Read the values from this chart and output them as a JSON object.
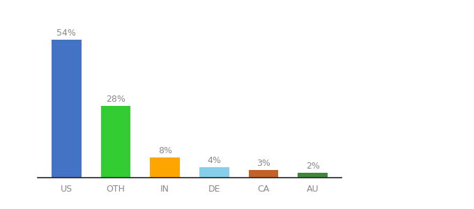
{
  "categories": [
    "US",
    "OTH",
    "IN",
    "DE",
    "CA",
    "AU"
  ],
  "values": [
    54,
    28,
    8,
    4,
    3,
    2
  ],
  "bar_colors": [
    "#4472C4",
    "#33CC33",
    "#FFA500",
    "#87CEEB",
    "#C0622A",
    "#3A8A3A"
  ],
  "xlabel": "",
  "ylabel": "",
  "ylim": [
    0,
    63
  ],
  "label_format": "{}%",
  "background_color": "#ffffff",
  "bar_width": 0.6,
  "label_color": "#888888",
  "label_fontsize": 9,
  "tick_fontsize": 9,
  "tick_color": "#888888"
}
